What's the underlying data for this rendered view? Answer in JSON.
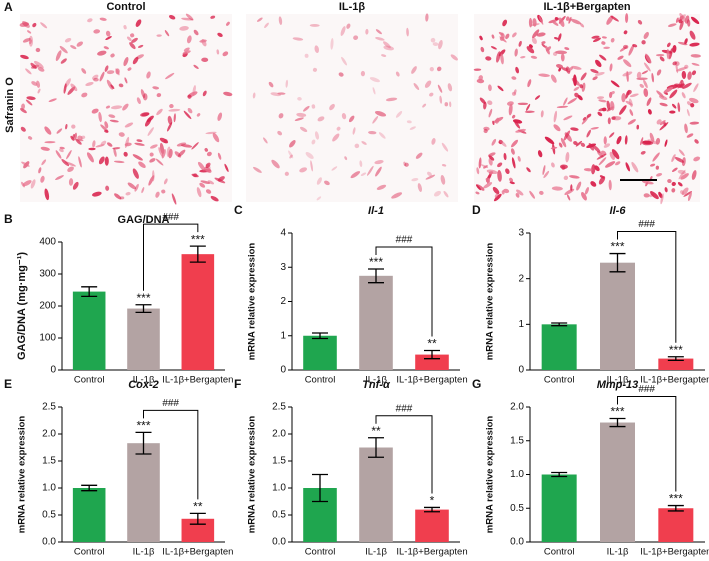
{
  "panel_a": {
    "label": "A",
    "stain": "Safranin O",
    "groups": [
      "Control",
      "IL-1β",
      "IL-1β+Bergapten"
    ]
  },
  "chart_data": [
    {
      "type": "bar",
      "panel": "B",
      "title": "GAG/DNA",
      "title_italic": false,
      "y_label": "GAG/DNA (mg·mg⁻¹)",
      "categories": [
        "Control",
        "IL-1β",
        "IL-1β+Bergapten"
      ],
      "values": [
        245,
        192,
        362
      ],
      "errors": [
        15,
        12,
        25
      ],
      "annotations": [
        null,
        "***",
        "***"
      ],
      "bracket_label": "###",
      "colors": [
        "#1fa64f",
        "#b3a3a3",
        "#f03e4e"
      ],
      "ylim": [
        0,
        400
      ],
      "yticks": [
        0,
        100,
        200,
        300,
        400
      ]
    },
    {
      "type": "bar",
      "panel": "C",
      "title": "Il-1",
      "title_italic": true,
      "y_label": "mRNA relative expression",
      "categories": [
        "Control",
        "IL-1β",
        "IL-1β+Bergapten"
      ],
      "values": [
        1.0,
        2.75,
        0.45
      ],
      "errors": [
        0.08,
        0.2,
        0.12
      ],
      "annotations": [
        null,
        "***",
        "**"
      ],
      "bracket_label": "###",
      "colors": [
        "#1fa64f",
        "#b3a3a3",
        "#f03e4e"
      ],
      "ylim": [
        0,
        4
      ],
      "yticks": [
        0,
        1,
        2,
        3,
        4
      ]
    },
    {
      "type": "bar",
      "panel": "D",
      "title": "Il-6",
      "title_italic": true,
      "y_label": "mRNA relative expression",
      "categories": [
        "Control",
        "IL-1β",
        "IL-1β+Bergapten"
      ],
      "values": [
        1.0,
        2.35,
        0.25
      ],
      "errors": [
        0.03,
        0.2,
        0.04
      ],
      "annotations": [
        null,
        "***",
        "***"
      ],
      "bracket_label": "###",
      "colors": [
        "#1fa64f",
        "#b3a3a3",
        "#f03e4e"
      ],
      "ylim": [
        0,
        3
      ],
      "yticks": [
        0,
        1,
        2,
        3
      ]
    },
    {
      "type": "bar",
      "panel": "E",
      "title": "Cox-2",
      "title_italic": true,
      "y_label": "mRNA relative expression",
      "categories": [
        "Control",
        "IL-1β",
        "IL-1β+Bergapten"
      ],
      "values": [
        1.0,
        1.83,
        0.43
      ],
      "errors": [
        0.05,
        0.2,
        0.1
      ],
      "annotations": [
        null,
        "***",
        "**"
      ],
      "bracket_label": "###",
      "colors": [
        "#1fa64f",
        "#b3a3a3",
        "#f03e4e"
      ],
      "ylim": [
        0,
        2.5
      ],
      "yticks": [
        {
          "value": 0,
          "label": "0.0"
        },
        0.5,
        {
          "value": 1,
          "label": "1.0"
        },
        1.5,
        {
          "value": 2,
          "label": "2.0"
        },
        2.5
      ]
    },
    {
      "type": "bar",
      "panel": "F",
      "title": "Tnf-α",
      "title_italic": true,
      "y_label": "mRNA relative expression",
      "categories": [
        "Control",
        "IL-1β",
        "IL-1β+Bergapten"
      ],
      "values": [
        1.0,
        1.75,
        0.6
      ],
      "errors": [
        0.25,
        0.18,
        0.04
      ],
      "annotations": [
        null,
        "**",
        "*"
      ],
      "bracket_label": "###",
      "colors": [
        "#1fa64f",
        "#b3a3a3",
        "#f03e4e"
      ],
      "ylim": [
        0,
        2.5
      ],
      "yticks": [
        {
          "value": 0,
          "label": "0.0"
        },
        0.5,
        {
          "value": 1,
          "label": "1.0"
        },
        1.5,
        {
          "value": 2,
          "label": "2.0"
        },
        2.5
      ]
    },
    {
      "type": "bar",
      "panel": "G",
      "title": "Mmp-13",
      "title_italic": true,
      "y_label": "mRNA relative expression",
      "categories": [
        "Control",
        "IL-1β",
        "IL-1β+Bergapten"
      ],
      "values": [
        1.0,
        1.77,
        0.5
      ],
      "errors": [
        0.03,
        0.06,
        0.04
      ],
      "annotations": [
        null,
        "***",
        "***"
      ],
      "bracket_label": "###",
      "colors": [
        "#1fa64f",
        "#b3a3a3",
        "#f03e4e"
      ],
      "ylim": [
        0,
        2
      ],
      "yticks": [
        {
          "value": 0,
          "label": "0.0"
        },
        0.5,
        {
          "value": 1,
          "label": "1.0"
        },
        1.5,
        {
          "value": 2,
          "label": "2.0"
        }
      ]
    }
  ]
}
